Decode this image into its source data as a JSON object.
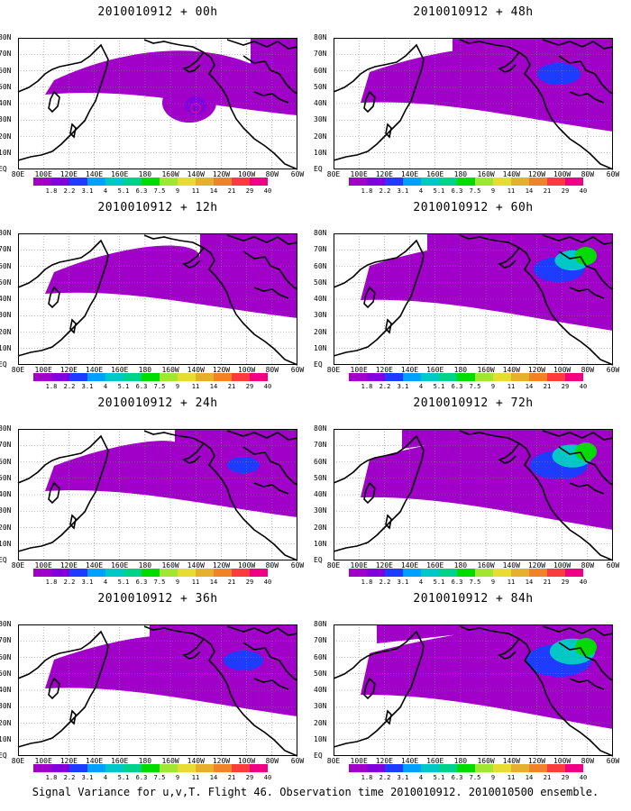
{
  "panels": [
    {
      "title": "2010010912 + 00h"
    },
    {
      "title": "2010010912 + 48h"
    },
    {
      "title": "2010010912 + 12h"
    },
    {
      "title": "2010010912 + 60h"
    },
    {
      "title": "2010010912 + 24h"
    },
    {
      "title": "2010010912 + 72h"
    },
    {
      "title": "2010010912 + 36h"
    },
    {
      "title": "2010010912 + 84h"
    }
  ],
  "lat_labels": [
    "80N",
    "70N",
    "60N",
    "50N",
    "40N",
    "30N",
    "20N",
    "10N",
    "EQ"
  ],
  "lon_labels": [
    "80E",
    "100E",
    "120E",
    "140E",
    "160E",
    "180",
    "160W",
    "140W",
    "120W",
    "100W",
    "80W",
    "60W"
  ],
  "colorbar": {
    "labels": [
      "1.8",
      "2.2",
      "3.1",
      "4",
      "5.1",
      "6.3",
      "7.5",
      "9",
      "11",
      "14",
      "21",
      "29",
      "40"
    ],
    "colors": [
      "#a000c8",
      "#8200dc",
      "#1e3cff",
      "#00a0ff",
      "#00c8c8",
      "#00d28c",
      "#00dc00",
      "#a0e632",
      "#e6dc32",
      "#e6af2d",
      "#f08228",
      "#fa3c3c",
      "#f00082"
    ]
  },
  "footer": "Signal Variance for u,v,T. Flight 46. Observation time 2010010912. 2010010500 ensemble."
}
